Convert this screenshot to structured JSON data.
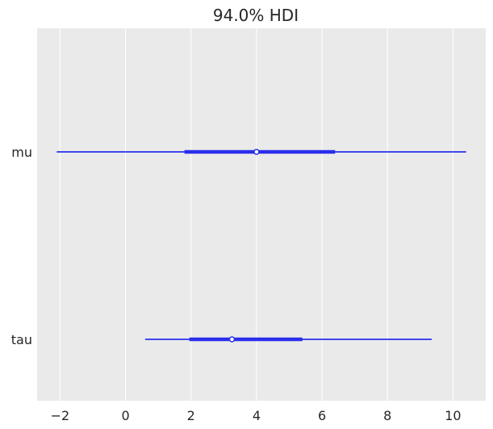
{
  "chart_data": {
    "type": "forest",
    "title": "94.0% HDI",
    "xlabel": "",
    "ylabel": "",
    "xlim": [
      -2.7,
      11.0
    ],
    "xticks": [
      -2,
      0,
      2,
      4,
      6,
      8,
      10
    ],
    "xtick_labels": [
      "−2",
      "0",
      "2",
      "4",
      "6",
      "8",
      "10"
    ],
    "grid": true,
    "line_color": "#2a2eec",
    "background_color": "#eaeaea",
    "grid_color": "#ffffff",
    "variables": [
      {
        "label": "mu",
        "hdi_low": -2.1,
        "hdi_high": 10.4,
        "iqr_low": 1.8,
        "iqr_high": 6.4,
        "point": 4.0
      },
      {
        "label": "tau",
        "hdi_low": 0.6,
        "hdi_high": 9.35,
        "iqr_low": 1.95,
        "iqr_high": 5.4,
        "point": 3.25
      }
    ]
  }
}
